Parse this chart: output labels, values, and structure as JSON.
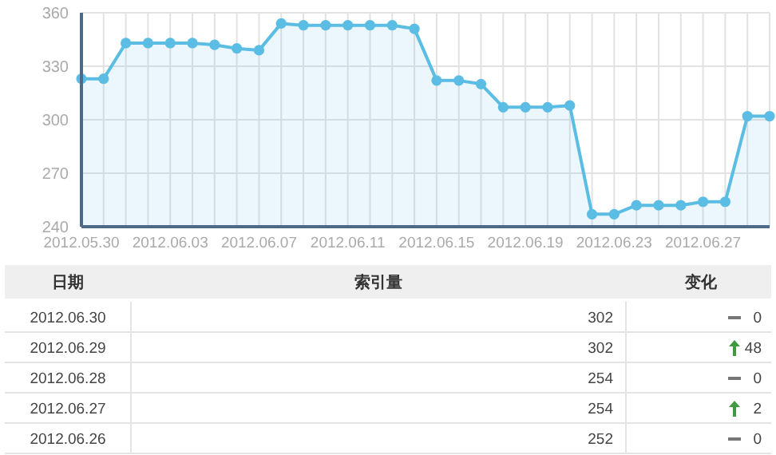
{
  "chart_data": [
    {
      "type": "area",
      "x": [
        "2012-05-30",
        "2012-05-31",
        "2012-06-01",
        "2012-06-02",
        "2012-06-03",
        "2012-06-04",
        "2012-06-05",
        "2012-06-06",
        "2012-06-07",
        "2012-06-08",
        "2012-06-09",
        "2012-06-10",
        "2012-06-11",
        "2012-06-12",
        "2012-06-13",
        "2012-06-14",
        "2012-06-15",
        "2012-06-16",
        "2012-06-17",
        "2012-06-18",
        "2012-06-19",
        "2012-06-20",
        "2012-06-21",
        "2012-06-22",
        "2012-06-23",
        "2012-06-24",
        "2012-06-25",
        "2012-06-26",
        "2012-06-27",
        "2012-06-28",
        "2012-06-29",
        "2012-06-30"
      ],
      "series": [
        {
          "color": "#5bbde4",
          "values": [
            323,
            323,
            343,
            343,
            343,
            343,
            342,
            340,
            339,
            354,
            353,
            353,
            353,
            353,
            353,
            351,
            322,
            322,
            320,
            307,
            307,
            307,
            308,
            247,
            247,
            252,
            252,
            252,
            254,
            254,
            302,
            302
          ]
        }
      ],
      "xlim": [
        "2012-05-30",
        "2012-06-30"
      ],
      "xticks": [
        {
          "value": "2012-05-30",
          "label": "2012.05.30"
        },
        {
          "value": "2012-05-31",
          "label": null
        },
        {
          "value": "2012-06-01",
          "label": null
        },
        {
          "value": "2012-06-02",
          "label": null
        },
        {
          "value": "2012-06-03",
          "label": "2012.06.03"
        },
        {
          "value": "2012-06-04",
          "label": null
        },
        {
          "value": "2012-06-05",
          "label": null
        },
        {
          "value": "2012-06-06",
          "label": null
        },
        {
          "value": "2012-06-07",
          "label": "2012.06.07"
        },
        {
          "value": "2012-06-08",
          "label": null
        },
        {
          "value": "2012-06-09",
          "label": null
        },
        {
          "value": "2012-06-10",
          "label": null
        },
        {
          "value": "2012-06-11",
          "label": "2012.06.11"
        },
        {
          "value": "2012-06-12",
          "label": null
        },
        {
          "value": "2012-06-13",
          "label": null
        },
        {
          "value": "2012-06-14",
          "label": null
        },
        {
          "value": "2012-06-15",
          "label": "2012.06.15"
        },
        {
          "value": "2012-06-16",
          "label": null
        },
        {
          "value": "2012-06-17",
          "label": null
        },
        {
          "value": "2012-06-18",
          "label": null
        },
        {
          "value": "2012-06-19",
          "label": "2012.06.19"
        },
        {
          "value": "2012-06-20",
          "label": null
        },
        {
          "value": "2012-06-21",
          "label": null
        },
        {
          "value": "2012-06-22",
          "label": null
        },
        {
          "value": "2012-06-23",
          "label": "2012.06.23"
        },
        {
          "value": "2012-06-24",
          "label": null
        },
        {
          "value": "2012-06-25",
          "label": null
        },
        {
          "value": "2012-06-26",
          "label": null
        },
        {
          "value": "2012-06-27",
          "label": "2012.06.27"
        },
        {
          "value": "2012-06-28",
          "label": null
        },
        {
          "value": "2012-06-29",
          "label": null
        },
        {
          "value": "2012-06-30",
          "label": null
        }
      ],
      "ylim": [
        240,
        360
      ],
      "yticks": [
        240,
        270,
        300,
        330,
        360
      ],
      "grid": true,
      "marker": "circle"
    },
    {
      "type": "other",
      "xlabel": "日期",
      "ylabel": "索引量",
      "y2label": "变化",
      "categories": [
        "2012.06.30",
        "2012.06.29",
        "2012.06.28",
        "2012.06.27",
        "2012.06.26"
      ],
      "series": [
        {
          "values": [
            302,
            302,
            254,
            254,
            252
          ]
        },
        {
          "axis": "y2",
          "values": [
            0,
            48,
            0,
            2,
            0
          ]
        }
      ],
      "data_labels": true
    }
  ]
}
